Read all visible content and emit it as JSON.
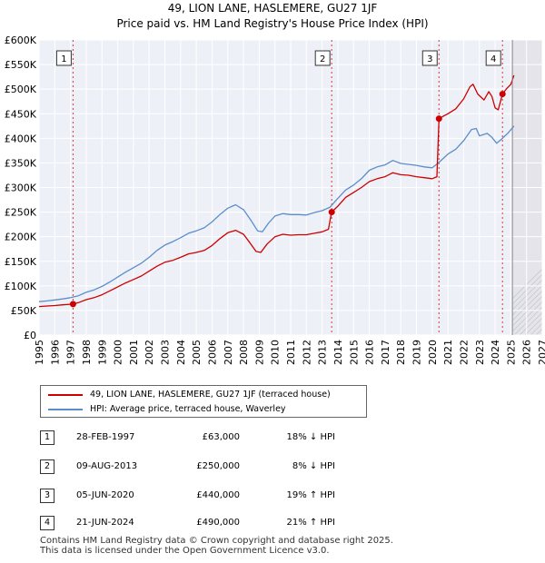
{
  "chart_data": {
    "type": "line",
    "title": "49, LION LANE, HASLEMERE, GU27 1JF",
    "subtitle": "Price paid vs. HM Land Registry's House Price Index (HPI)",
    "ylim": [
      0,
      600000
    ],
    "y_ticks": [
      0,
      50000,
      100000,
      150000,
      200000,
      250000,
      300000,
      350000,
      400000,
      450000,
      500000,
      550000,
      600000
    ],
    "y_tick_labels": [
      "£0",
      "£50K",
      "£100K",
      "£150K",
      "£200K",
      "£250K",
      "£300K",
      "£350K",
      "£400K",
      "£450K",
      "£500K",
      "£550K",
      "£600K"
    ],
    "xlim": [
      1995,
      2027
    ],
    "x_ticks": [
      "1995",
      "1996",
      "1997",
      "1998",
      "1999",
      "2000",
      "2001",
      "2002",
      "2003",
      "2004",
      "2005",
      "2006",
      "2007",
      "2008",
      "2009",
      "2010",
      "2011",
      "2012",
      "2013",
      "2014",
      "2015",
      "2016",
      "2017",
      "2018",
      "2019",
      "2020",
      "2021",
      "2022",
      "2023",
      "2024",
      "2025",
      "2026",
      "2027"
    ],
    "forecast_start": 2025.1,
    "series": [
      {
        "name": "49, LION LANE, HASLEMERE, GU27 1JF (terraced house)",
        "color": "#cc0000",
        "points": [
          [
            1995.0,
            58000
          ],
          [
            1995.5,
            59000
          ],
          [
            1996.0,
            60000
          ],
          [
            1996.5,
            61500
          ],
          [
            1997.16,
            63000
          ],
          [
            1997.5,
            66000
          ],
          [
            1998.0,
            72000
          ],
          [
            1998.5,
            76000
          ],
          [
            1999.0,
            82000
          ],
          [
            1999.5,
            90000
          ],
          [
            2000.0,
            98000
          ],
          [
            2000.5,
            106000
          ],
          [
            2001.0,
            113000
          ],
          [
            2001.5,
            120000
          ],
          [
            2002.0,
            130000
          ],
          [
            2002.5,
            140000
          ],
          [
            2003.0,
            148000
          ],
          [
            2003.5,
            152000
          ],
          [
            2004.0,
            158000
          ],
          [
            2004.5,
            165000
          ],
          [
            2005.0,
            168000
          ],
          [
            2005.5,
            172000
          ],
          [
            2006.0,
            182000
          ],
          [
            2006.5,
            196000
          ],
          [
            2007.0,
            208000
          ],
          [
            2007.5,
            213000
          ],
          [
            2008.0,
            205000
          ],
          [
            2008.4,
            188000
          ],
          [
            2008.8,
            170000
          ],
          [
            2009.1,
            168000
          ],
          [
            2009.5,
            185000
          ],
          [
            2010.0,
            200000
          ],
          [
            2010.5,
            205000
          ],
          [
            2011.0,
            203000
          ],
          [
            2011.5,
            204000
          ],
          [
            2012.0,
            204000
          ],
          [
            2012.5,
            207000
          ],
          [
            2013.0,
            210000
          ],
          [
            2013.4,
            215000
          ],
          [
            2013.6,
            250000
          ],
          [
            2014.0,
            262000
          ],
          [
            2014.5,
            280000
          ],
          [
            2015.0,
            290000
          ],
          [
            2015.5,
            300000
          ],
          [
            2016.0,
            312000
          ],
          [
            2016.5,
            318000
          ],
          [
            2017.0,
            322000
          ],
          [
            2017.5,
            330000
          ],
          [
            2018.0,
            326000
          ],
          [
            2018.5,
            325000
          ],
          [
            2019.0,
            322000
          ],
          [
            2019.5,
            320000
          ],
          [
            2020.0,
            318000
          ],
          [
            2020.3,
            322000
          ],
          [
            2020.43,
            440000
          ],
          [
            2020.7,
            445000
          ],
          [
            2021.0,
            450000
          ],
          [
            2021.5,
            460000
          ],
          [
            2022.0,
            480000
          ],
          [
            2022.4,
            505000
          ],
          [
            2022.6,
            510000
          ],
          [
            2022.9,
            490000
          ],
          [
            2023.3,
            478000
          ],
          [
            2023.6,
            495000
          ],
          [
            2023.8,
            485000
          ],
          [
            2024.0,
            462000
          ],
          [
            2024.2,
            458000
          ],
          [
            2024.47,
            490000
          ],
          [
            2024.7,
            500000
          ],
          [
            2025.0,
            510000
          ],
          [
            2025.2,
            528000
          ]
        ]
      },
      {
        "name": "HPI: Average price, terraced house, Waverley",
        "color": "#5b8ec9",
        "points": [
          [
            1995.0,
            68000
          ],
          [
            1995.5,
            69500
          ],
          [
            1996.0,
            71500
          ],
          [
            1996.5,
            73500
          ],
          [
            1997.0,
            76000
          ],
          [
            1997.5,
            80000
          ],
          [
            1998.0,
            87000
          ],
          [
            1998.5,
            92000
          ],
          [
            1999.0,
            99000
          ],
          [
            1999.5,
            108000
          ],
          [
            2000.0,
            118000
          ],
          [
            2000.5,
            128000
          ],
          [
            2001.0,
            137000
          ],
          [
            2001.5,
            146000
          ],
          [
            2002.0,
            158000
          ],
          [
            2002.5,
            172000
          ],
          [
            2003.0,
            183000
          ],
          [
            2003.5,
            190000
          ],
          [
            2004.0,
            198000
          ],
          [
            2004.5,
            207000
          ],
          [
            2005.0,
            212000
          ],
          [
            2005.5,
            218000
          ],
          [
            2006.0,
            230000
          ],
          [
            2006.5,
            245000
          ],
          [
            2007.0,
            258000
          ],
          [
            2007.5,
            265000
          ],
          [
            2008.0,
            255000
          ],
          [
            2008.5,
            232000
          ],
          [
            2008.9,
            212000
          ],
          [
            2009.2,
            210000
          ],
          [
            2009.6,
            228000
          ],
          [
            2010.0,
            242000
          ],
          [
            2010.5,
            247000
          ],
          [
            2011.0,
            245000
          ],
          [
            2011.5,
            245000
          ],
          [
            2012.0,
            244000
          ],
          [
            2012.5,
            249000
          ],
          [
            2013.0,
            253000
          ],
          [
            2013.5,
            260000
          ],
          [
            2014.0,
            278000
          ],
          [
            2014.5,
            295000
          ],
          [
            2015.0,
            305000
          ],
          [
            2015.5,
            318000
          ],
          [
            2016.0,
            335000
          ],
          [
            2016.5,
            342000
          ],
          [
            2017.0,
            346000
          ],
          [
            2017.5,
            355000
          ],
          [
            2018.0,
            349000
          ],
          [
            2018.5,
            347000
          ],
          [
            2019.0,
            345000
          ],
          [
            2019.5,
            342000
          ],
          [
            2020.0,
            340000
          ],
          [
            2020.4,
            350000
          ],
          [
            2020.8,
            362000
          ],
          [
            2021.0,
            368000
          ],
          [
            2021.5,
            378000
          ],
          [
            2022.0,
            395000
          ],
          [
            2022.5,
            418000
          ],
          [
            2022.8,
            420000
          ],
          [
            2023.0,
            405000
          ],
          [
            2023.5,
            410000
          ],
          [
            2023.8,
            402000
          ],
          [
            2024.1,
            390000
          ],
          [
            2024.4,
            398000
          ],
          [
            2024.8,
            410000
          ],
          [
            2025.2,
            425000
          ]
        ]
      }
    ],
    "sales": [
      {
        "label": "1",
        "year": 1997.16,
        "price": 63000
      },
      {
        "label": "2",
        "year": 2013.61,
        "price": 250000
      },
      {
        "label": "3",
        "year": 2020.43,
        "price": 440000
      },
      {
        "label": "4",
        "year": 2024.47,
        "price": 490000
      }
    ]
  },
  "legend": {
    "property_label": "49, LION LANE, HASLEMERE, GU27 1JF (terraced house)",
    "hpi_label": "HPI: Average price, terraced house, Waverley"
  },
  "transactions": [
    {
      "num": "1",
      "date": "28-FEB-1997",
      "price": "£63,000",
      "hpi": "18% ↓ HPI"
    },
    {
      "num": "2",
      "date": "09-AUG-2013",
      "price": "£250,000",
      "hpi": "8% ↓ HPI"
    },
    {
      "num": "3",
      "date": "05-JUN-2020",
      "price": "£440,000",
      "hpi": "19% ↑ HPI"
    },
    {
      "num": "4",
      "date": "21-JUN-2024",
      "price": "£490,000",
      "hpi": "21% ↑ HPI"
    }
  ],
  "footer": {
    "line1": "Contains HM Land Registry data © Crown copyright and database right 2025.",
    "line2": "This data is licensed under the Open Government Licence v3.0."
  },
  "colors": {
    "property": "#cc0000",
    "hpi": "#5b8ec9",
    "plot_bg": "#eef0f8",
    "grid": "#ffffff"
  }
}
